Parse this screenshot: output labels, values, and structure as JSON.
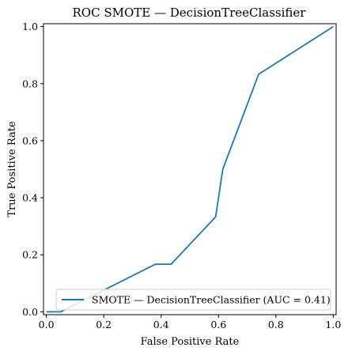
{
  "chart_data": {
    "type": "line",
    "title": "ROC SMOTE — DecisionTreeClassifier",
    "xlabel": "False Positive Rate",
    "ylabel": "True Positive Rate",
    "xlim": [
      -0.01,
      1.01
    ],
    "ylim": [
      -0.01,
      1.01
    ],
    "x_ticks": [
      "0.0",
      "0.2",
      "0.4",
      "0.6",
      "0.8",
      "1.0"
    ],
    "y_ticks": [
      "0.0",
      "0.2",
      "0.4",
      "0.6",
      "0.8",
      "1.0"
    ],
    "grid": false,
    "legend_position": "lower-right",
    "series": [
      {
        "name": "SMOTE — DecisionTreeClassifier (AUC = 0.41)",
        "color": "#1f77b4",
        "x": [
          0.0,
          0.05,
          0.38,
          0.435,
          0.59,
          0.615,
          0.74,
          1.0
        ],
        "y": [
          0.0,
          0.0,
          0.167,
          0.167,
          0.333,
          0.5,
          0.833,
          1.0
        ]
      }
    ]
  }
}
